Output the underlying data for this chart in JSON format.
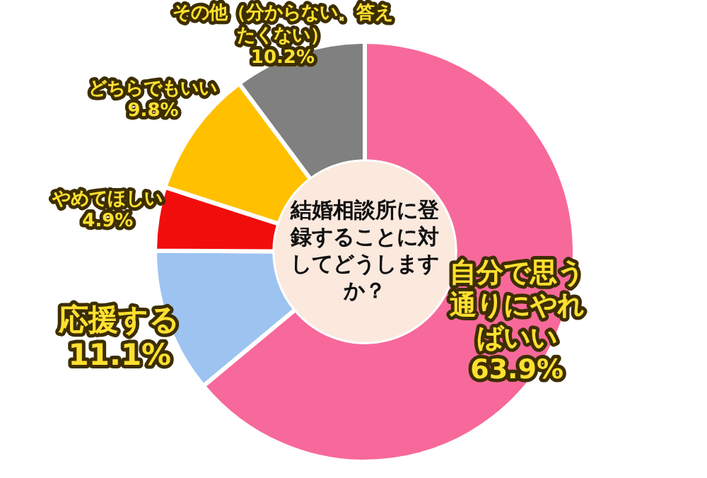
{
  "chart_data": {
    "type": "donut",
    "title": "結婚相談所に登録することに対してどうしますか？",
    "categories": [
      "自分で思う通りにやればいい",
      "応援する",
      "やめてほしい",
      "どちらでもいい",
      "その他（分からない、答えたくない）"
    ],
    "values": [
      63.9,
      11.1,
      4.9,
      9.8,
      10.2
    ],
    "value_labels": [
      "63.9%",
      "11.1%",
      "4.9%",
      "9.8%",
      "10.2%"
    ],
    "colors": [
      "#f7699a",
      "#9dc3f0",
      "#f20d0d",
      "#ffc000",
      "#808080"
    ],
    "legend": false
  }
}
